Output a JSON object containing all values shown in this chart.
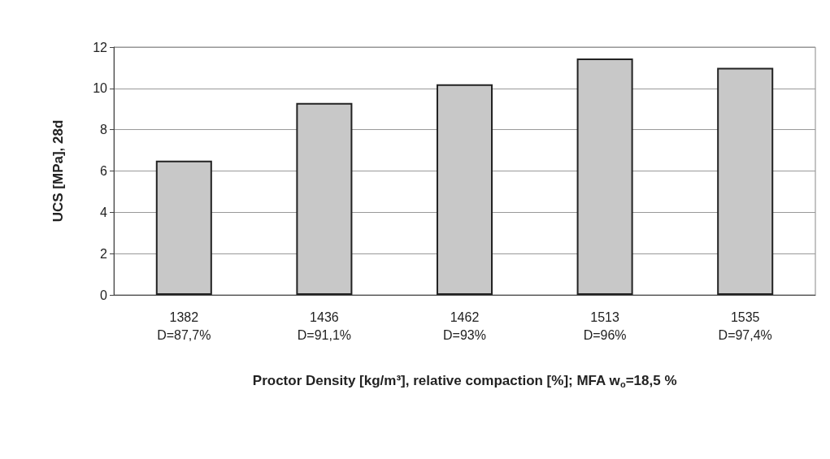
{
  "chart_data": {
    "type": "bar",
    "xlabel": "Proctor Density [kg/m³], relative compaction [%]; MFA w$_{o}$=18,5 %",
    "ylabel": "UCS [MPa], 28d",
    "categories": [
      "1382\nD=87,7%",
      "1436\nD=91,1%",
      "1462\nD=93%",
      "1513\nD=96%",
      "1535\nD=97,4%"
    ],
    "values": [
      6.5,
      9.3,
      10.2,
      11.45,
      11.0
    ],
    "color": "#c8c8c8",
    "ylim": [
      0,
      12
    ],
    "yticks": [
      0,
      2,
      4,
      6,
      8,
      10,
      12
    ],
    "grid": "y"
  }
}
